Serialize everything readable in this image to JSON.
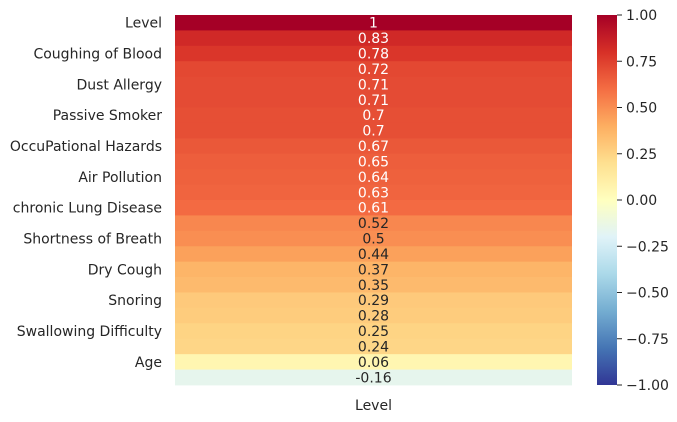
{
  "chart_data": {
    "type": "heatmap",
    "title": "",
    "xlabel": "",
    "ylabel": "",
    "columns": [
      "Level"
    ],
    "rows": [
      {
        "label": "Level",
        "value": 1
      },
      {
        "label": "",
        "value": 0.83
      },
      {
        "label": "Coughing of Blood",
        "value": 0.78
      },
      {
        "label": "",
        "value": 0.72
      },
      {
        "label": "Dust Allergy",
        "value": 0.71
      },
      {
        "label": "",
        "value": 0.71
      },
      {
        "label": "Passive Smoker",
        "value": 0.7
      },
      {
        "label": "",
        "value": 0.7
      },
      {
        "label": "OccuPational Hazards",
        "value": 0.67
      },
      {
        "label": "",
        "value": 0.65
      },
      {
        "label": "Air Pollution",
        "value": 0.64
      },
      {
        "label": "",
        "value": 0.63
      },
      {
        "label": "chronic Lung Disease",
        "value": 0.61
      },
      {
        "label": "",
        "value": 0.52
      },
      {
        "label": "Shortness of Breath",
        "value": 0.5
      },
      {
        "label": "",
        "value": 0.44
      },
      {
        "label": "Dry Cough",
        "value": 0.37
      },
      {
        "label": "",
        "value": 0.35
      },
      {
        "label": "Snoring",
        "value": 0.29
      },
      {
        "label": "",
        "value": 0.28
      },
      {
        "label": "Swallowing Difficulty",
        "value": 0.25
      },
      {
        "label": "",
        "value": 0.24
      },
      {
        "label": "Age",
        "value": 0.06
      },
      {
        "label": "",
        "value": -0.16
      }
    ],
    "colorscale": "RdYlBu_r",
    "vmin": -1,
    "vmax": 1,
    "colorbar_ticks": [
      "1.00",
      "0.75",
      "0.50",
      "0.25",
      "0.00",
      "−0.25",
      "−0.50",
      "−0.75",
      "−1.00"
    ],
    "colorbar_values": [
      1,
      0.75,
      0.5,
      0.25,
      0,
      -0.25,
      -0.5,
      -0.75,
      -1
    ]
  }
}
